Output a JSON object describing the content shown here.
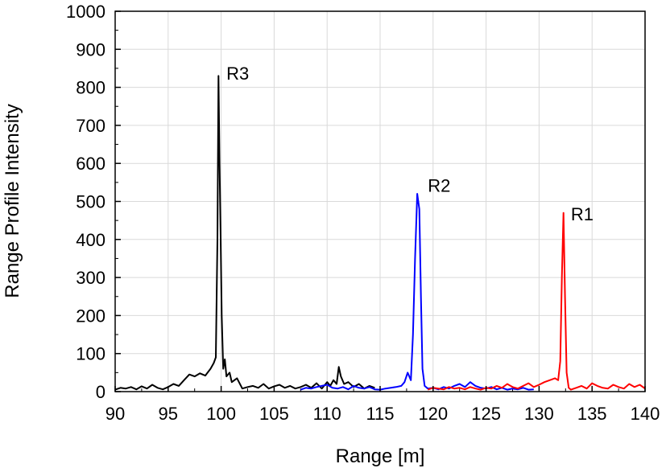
{
  "chart_data": {
    "type": "line",
    "xlabel": "Range [m]",
    "ylabel": "Range Profile Intensity",
    "xlim": [
      90,
      140
    ],
    "ylim": [
      0,
      1000
    ],
    "x_ticks": [
      "90",
      "95",
      "100",
      "105",
      "110",
      "115",
      "120",
      "125",
      "130",
      "135",
      "140"
    ],
    "y_ticks": [
      "0",
      "100",
      "200",
      "300",
      "400",
      "500",
      "600",
      "700",
      "800",
      "900",
      "1000"
    ],
    "grid": true,
    "series": [
      {
        "color": "#000000",
        "points": [
          [
            90,
            5
          ],
          [
            90.5,
            10
          ],
          [
            91,
            8
          ],
          [
            91.5,
            12
          ],
          [
            92,
            6
          ],
          [
            92.5,
            14
          ],
          [
            93,
            8
          ],
          [
            93.5,
            18
          ],
          [
            94,
            10
          ],
          [
            94.5,
            6
          ],
          [
            95,
            12
          ],
          [
            95.5,
            20
          ],
          [
            96,
            15
          ],
          [
            96.5,
            30
          ],
          [
            97,
            45
          ],
          [
            97.5,
            40
          ],
          [
            98,
            48
          ],
          [
            98.5,
            42
          ],
          [
            99,
            60
          ],
          [
            99.3,
            75
          ],
          [
            99.5,
            90
          ],
          [
            99.65,
            400
          ],
          [
            99.75,
            830
          ],
          [
            99.85,
            600
          ],
          [
            99.95,
            420
          ],
          [
            100.05,
            200
          ],
          [
            100.2,
            60
          ],
          [
            100.35,
            85
          ],
          [
            100.5,
            40
          ],
          [
            100.8,
            50
          ],
          [
            101,
            25
          ],
          [
            101.5,
            35
          ],
          [
            102,
            8
          ],
          [
            102.5,
            12
          ],
          [
            103,
            15
          ],
          [
            103.5,
            10
          ],
          [
            104,
            20
          ],
          [
            104.5,
            8
          ],
          [
            105,
            14
          ],
          [
            105.5,
            18
          ],
          [
            106,
            10
          ],
          [
            106.5,
            15
          ],
          [
            107,
            8
          ],
          [
            107.5,
            12
          ],
          [
            108,
            18
          ],
          [
            108.5,
            10
          ],
          [
            109,
            22
          ],
          [
            109.5,
            8
          ],
          [
            110,
            25
          ],
          [
            110.3,
            15
          ],
          [
            110.6,
            30
          ],
          [
            110.9,
            20
          ],
          [
            111.1,
            65
          ],
          [
            111.3,
            40
          ],
          [
            111.6,
            20
          ],
          [
            112,
            25
          ],
          [
            112.5,
            12
          ],
          [
            113,
            20
          ],
          [
            113.5,
            8
          ],
          [
            114,
            15
          ],
          [
            114.5,
            10
          ]
        ]
      },
      {
        "color": "#0000ff",
        "points": [
          [
            107.5,
            5
          ],
          [
            108,
            10
          ],
          [
            108.5,
            8
          ],
          [
            109,
            12
          ],
          [
            109.5,
            15
          ],
          [
            110,
            18
          ],
          [
            110.5,
            10
          ],
          [
            111,
            8
          ],
          [
            111.5,
            12
          ],
          [
            112,
            6
          ],
          [
            112.5,
            15
          ],
          [
            113,
            10
          ],
          [
            113.5,
            8
          ],
          [
            114,
            12
          ],
          [
            114.5,
            6
          ],
          [
            115,
            5
          ],
          [
            115.5,
            8
          ],
          [
            116,
            10
          ],
          [
            116.5,
            12
          ],
          [
            117,
            15
          ],
          [
            117.3,
            25
          ],
          [
            117.6,
            50
          ],
          [
            117.9,
            30
          ],
          [
            118.1,
            150
          ],
          [
            118.3,
            350
          ],
          [
            118.5,
            520
          ],
          [
            118.7,
            480
          ],
          [
            118.85,
            250
          ],
          [
            119,
            60
          ],
          [
            119.2,
            15
          ],
          [
            119.5,
            8
          ],
          [
            120,
            10
          ],
          [
            120.5,
            6
          ],
          [
            121,
            12
          ],
          [
            121.5,
            8
          ],
          [
            122,
            15
          ],
          [
            122.5,
            20
          ],
          [
            123,
            12
          ],
          [
            123.5,
            25
          ],
          [
            124,
            15
          ],
          [
            124.5,
            10
          ],
          [
            125,
            8
          ],
          [
            125.5,
            12
          ],
          [
            126,
            6
          ],
          [
            126.5,
            10
          ],
          [
            127,
            5
          ],
          [
            127.5,
            8
          ],
          [
            128,
            6
          ],
          [
            128.5,
            10
          ],
          [
            129,
            5
          ],
          [
            129.5,
            6
          ]
        ]
      },
      {
        "color": "#ff0000",
        "points": [
          [
            119.5,
            5
          ],
          [
            120,
            10
          ],
          [
            120.5,
            8
          ],
          [
            121,
            6
          ],
          [
            121.5,
            12
          ],
          [
            122,
            8
          ],
          [
            122.5,
            10
          ],
          [
            123,
            6
          ],
          [
            123.5,
            12
          ],
          [
            124,
            8
          ],
          [
            124.5,
            5
          ],
          [
            125,
            10
          ],
          [
            125.5,
            8
          ],
          [
            126,
            15
          ],
          [
            126.5,
            10
          ],
          [
            127,
            20
          ],
          [
            127.5,
            12
          ],
          [
            128,
            8
          ],
          [
            128.5,
            15
          ],
          [
            129,
            22
          ],
          [
            129.5,
            12
          ],
          [
            130,
            18
          ],
          [
            130.5,
            25
          ],
          [
            131,
            30
          ],
          [
            131.5,
            35
          ],
          [
            131.8,
            30
          ],
          [
            132,
            80
          ],
          [
            132.15,
            300
          ],
          [
            132.3,
            470
          ],
          [
            132.45,
            250
          ],
          [
            132.6,
            50
          ],
          [
            132.8,
            10
          ],
          [
            133,
            5
          ],
          [
            133.5,
            10
          ],
          [
            134,
            15
          ],
          [
            134.5,
            8
          ],
          [
            135,
            22
          ],
          [
            135.5,
            15
          ],
          [
            136,
            10
          ],
          [
            136.5,
            8
          ],
          [
            137,
            18
          ],
          [
            137.5,
            12
          ],
          [
            138,
            8
          ],
          [
            138.5,
            20
          ],
          [
            139,
            12
          ],
          [
            139.5,
            18
          ],
          [
            140,
            8
          ]
        ]
      }
    ],
    "annotations": [
      {
        "text": "R3",
        "x": 100.5,
        "y": 820
      },
      {
        "text": "R2",
        "x": 119.5,
        "y": 525
      },
      {
        "text": "R1",
        "x": 133.0,
        "y": 450
      }
    ]
  }
}
